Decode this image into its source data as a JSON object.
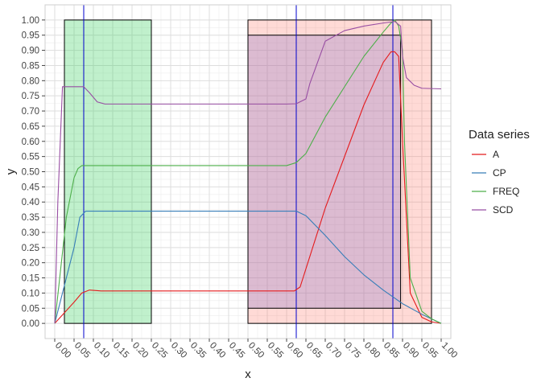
{
  "chart_data": {
    "type": "line",
    "xlabel": "x",
    "ylabel": "y",
    "xlim": [
      -0.025,
      1.025
    ],
    "ylim": [
      -0.05,
      1.05
    ],
    "x_ticks": [
      "0.00",
      "0.05",
      "0.10",
      "0.15",
      "0.20",
      "0.25",
      "0.30",
      "0.35",
      "0.40",
      "0.45",
      "0.50",
      "0.55",
      "0.60",
      "0.65",
      "0.70",
      "0.75",
      "0.80",
      "0.85",
      "0.90",
      "0.95",
      "1.00"
    ],
    "y_ticks": [
      "0.00",
      "0.05",
      "0.10",
      "0.15",
      "0.20",
      "0.25",
      "0.30",
      "0.35",
      "0.40",
      "0.45",
      "0.50",
      "0.55",
      "0.60",
      "0.65",
      "0.70",
      "0.75",
      "0.80",
      "0.85",
      "0.90",
      "0.95",
      "1.00"
    ],
    "grid": true,
    "legend": {
      "title": "Data series",
      "position": "right"
    },
    "vlines": [
      0.075,
      0.625,
      0.875
    ],
    "vline_color": "#0000cc",
    "rects": [
      {
        "x0": 0.025,
        "x1": 0.25,
        "y0": 0.0,
        "y1": 1.0,
        "fill": "#2ecc55",
        "opacity": 0.3
      },
      {
        "x0": 0.5,
        "x1": 0.975,
        "y0": 0.0,
        "y1": 1.0,
        "fill": "#ff6b5a",
        "opacity": 0.25
      },
      {
        "x0": 0.5,
        "x1": 0.895,
        "y0": 0.05,
        "y1": 0.95,
        "fill": "#8a74c8",
        "opacity": 0.3
      }
    ],
    "series": [
      {
        "name": "A",
        "color": "#e41a1c",
        "x": [
          0.0,
          0.05,
          0.07,
          0.09,
          0.12,
          0.2,
          0.4,
          0.6,
          0.62,
          0.635,
          0.7,
          0.8,
          0.85,
          0.87,
          0.88,
          0.89,
          0.9,
          0.92,
          0.95,
          0.975,
          1.0
        ],
        "y": [
          0.0,
          0.07,
          0.1,
          0.11,
          0.107,
          0.107,
          0.107,
          0.107,
          0.107,
          0.12,
          0.38,
          0.72,
          0.86,
          0.895,
          0.895,
          0.88,
          0.6,
          0.1,
          0.02,
          0.005,
          0.0
        ]
      },
      {
        "name": "CP",
        "color": "#377eb8",
        "x": [
          0.0,
          0.05,
          0.065,
          0.08,
          0.1,
          0.2,
          0.4,
          0.6,
          0.625,
          0.65,
          0.7,
          0.75,
          0.8,
          0.85,
          0.9,
          0.95,
          1.0
        ],
        "y": [
          0.0,
          0.25,
          0.35,
          0.37,
          0.37,
          0.37,
          0.37,
          0.37,
          0.37,
          0.355,
          0.29,
          0.22,
          0.16,
          0.11,
          0.065,
          0.03,
          0.0
        ]
      },
      {
        "name": "FREQ",
        "color": "#4daf4a",
        "x": [
          0.0,
          0.03,
          0.05,
          0.06,
          0.07,
          0.1,
          0.2,
          0.4,
          0.6,
          0.625,
          0.65,
          0.7,
          0.8,
          0.85,
          0.87,
          0.88,
          0.89,
          0.9,
          0.905,
          0.92,
          0.95,
          0.975,
          1.0
        ],
        "y": [
          0.0,
          0.35,
          0.48,
          0.51,
          0.52,
          0.52,
          0.52,
          0.52,
          0.52,
          0.53,
          0.56,
          0.68,
          0.88,
          0.96,
          0.99,
          1.0,
          0.98,
          0.9,
          0.6,
          0.15,
          0.04,
          0.015,
          0.0
        ]
      },
      {
        "name": "SCD",
        "color": "#984ea3",
        "x": [
          0.0,
          0.008,
          0.02,
          0.03,
          0.06,
          0.075,
          0.09,
          0.11,
          0.13,
          0.2,
          0.4,
          0.6,
          0.625,
          0.65,
          0.66,
          0.7,
          0.75,
          0.8,
          0.85,
          0.88,
          0.895,
          0.9,
          0.91,
          0.93,
          0.95,
          1.0
        ],
        "y": [
          0.0,
          0.4,
          0.78,
          0.78,
          0.78,
          0.78,
          0.76,
          0.73,
          0.723,
          0.723,
          0.723,
          0.723,
          0.724,
          0.74,
          0.79,
          0.93,
          0.965,
          0.98,
          0.99,
          0.995,
          0.98,
          0.88,
          0.81,
          0.785,
          0.775,
          0.773
        ]
      }
    ]
  }
}
